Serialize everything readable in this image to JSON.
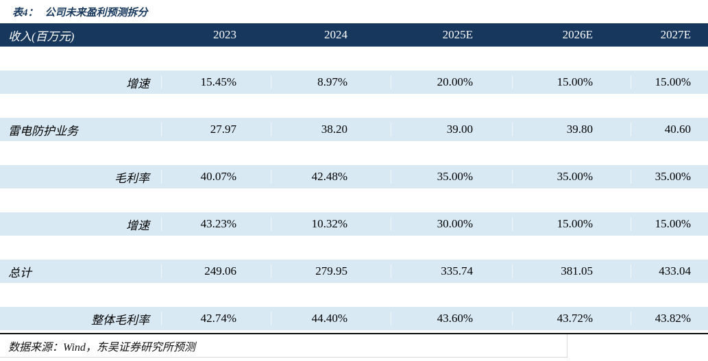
{
  "title": {
    "prefix": "表4：",
    "text": "公司未来盈利预测拆分"
  },
  "table": {
    "header": {
      "label": "收入(百万元)",
      "years": [
        "2023",
        "2024",
        "2025E",
        "2026E",
        "2027E"
      ]
    },
    "rows": [
      {
        "label": "增速",
        "align": "right",
        "values": [
          "15.45%",
          "8.97%",
          "20.00%",
          "15.00%",
          "15.00%"
        ]
      },
      {
        "label": "雷电防护业务",
        "align": "left",
        "values": [
          "27.97",
          "38.20",
          "39.00",
          "39.80",
          "40.60"
        ]
      },
      {
        "label": "毛利率",
        "align": "right",
        "values": [
          "40.07%",
          "42.48%",
          "35.00%",
          "35.00%",
          "35.00%"
        ]
      },
      {
        "label": "增速",
        "align": "right",
        "values": [
          "43.23%",
          "10.32%",
          "30.00%",
          "15.00%",
          "15.00%"
        ]
      },
      {
        "label": "总计",
        "align": "left",
        "values": [
          "249.06",
          "279.95",
          "335.74",
          "381.05",
          "433.04"
        ]
      },
      {
        "label": "整体毛利率",
        "align": "right",
        "values": [
          "42.74%",
          "44.40%",
          "43.60%",
          "43.72%",
          "43.82%"
        ]
      }
    ]
  },
  "footer": {
    "text": "数据来源：Wind，东吴证券研究所预测"
  },
  "colors": {
    "header_bg": "#17375D",
    "row_bg": "#D8E9F4",
    "title_text": "#17375D",
    "header_text": "#FFFFFF",
    "body_text": "#000000",
    "bottom_rule": "#0A0A0A"
  }
}
